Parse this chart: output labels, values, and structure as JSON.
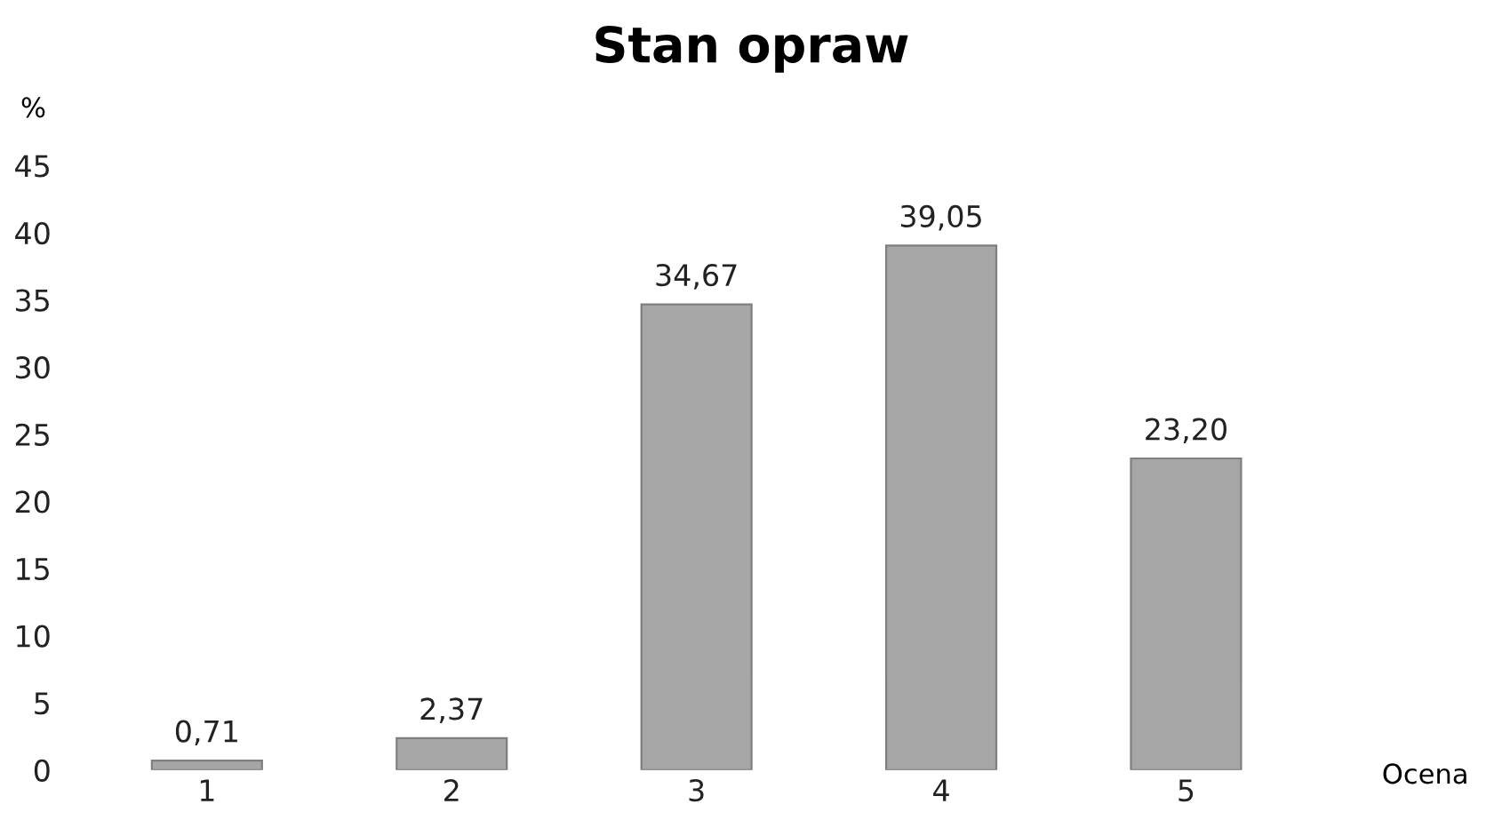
{
  "chart_data": {
    "type": "bar",
    "title": "Stan opraw",
    "xlabel": "Ocena",
    "ylabel": "%",
    "categories": [
      "1",
      "2",
      "3",
      "4",
      "5"
    ],
    "values": [
      0.71,
      2.37,
      34.67,
      39.05,
      23.2
    ],
    "value_labels": [
      "0,71",
      "2,37",
      "34,67",
      "39,05",
      "23,20"
    ],
    "color": "#a6a6a6",
    "ylim": [
      0,
      45
    ],
    "yticks": [
      0,
      5,
      10,
      15,
      20,
      25,
      30,
      35,
      40,
      45
    ],
    "grid": false
  }
}
